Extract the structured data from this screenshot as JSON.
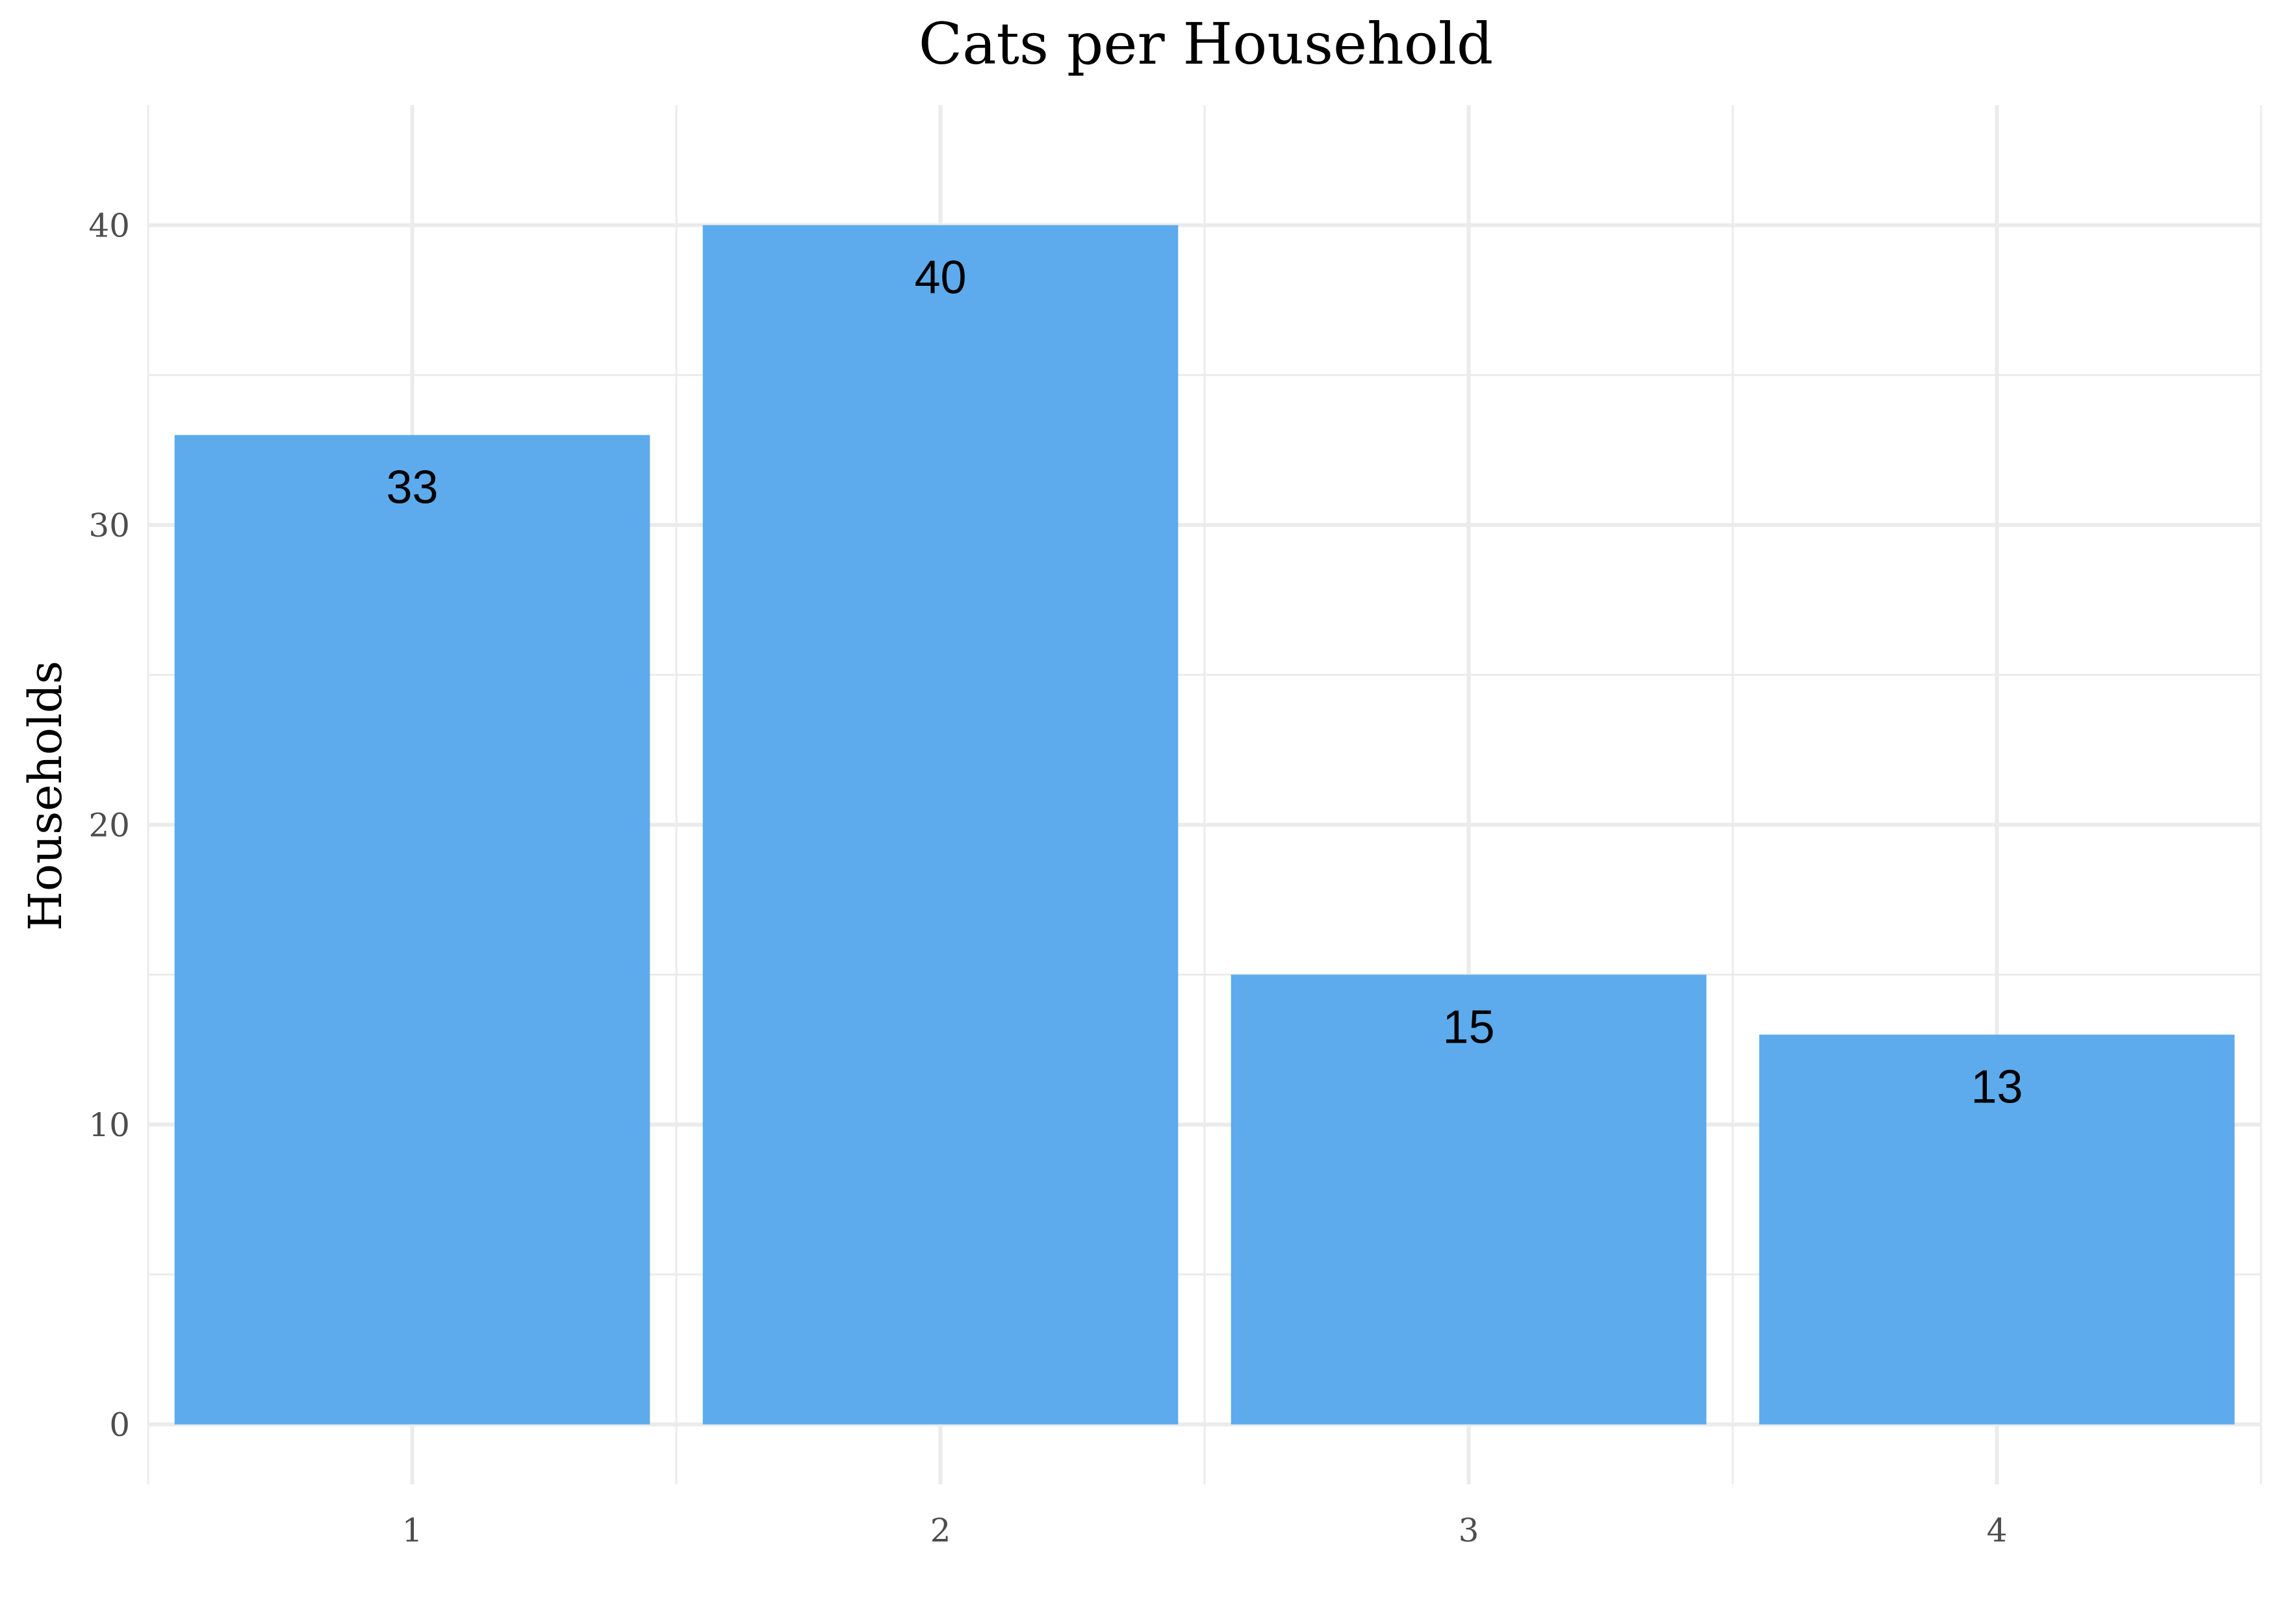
{
  "chart_data": {
    "type": "bar",
    "title": "Cats per Household",
    "xlabel": "",
    "ylabel": "Households",
    "categories": [
      "1",
      "2",
      "3",
      "4"
    ],
    "values": [
      33,
      40,
      15,
      13
    ],
    "data_labels": [
      "33",
      "40",
      "15",
      "13"
    ],
    "y_ticks": [
      "0",
      "10",
      "20",
      "30",
      "40"
    ],
    "ylim": [
      -2,
      44
    ],
    "grid": true,
    "legend": "none",
    "bar_color": "#5DABEC"
  }
}
